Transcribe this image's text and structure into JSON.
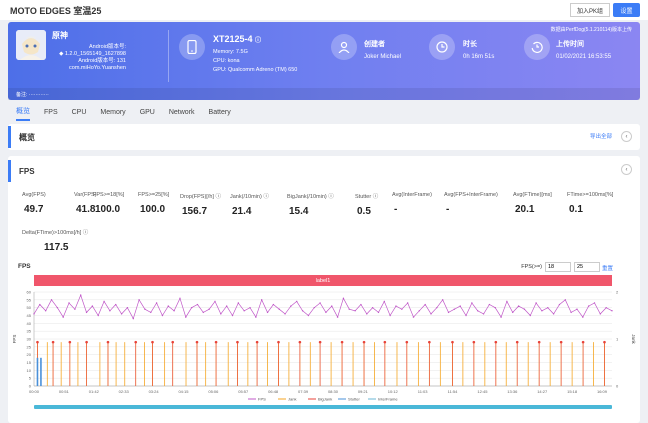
{
  "header": {
    "title": "MOTO EDGES 室温25",
    "join_label": "加入PK组",
    "settings_label": "设置"
  },
  "app": {
    "name": "原神",
    "android_ver_label": "Android版本号:",
    "version": "◆ 1.2.0_1565149_1627898",
    "android_ver_label2": "Android版本号: 131",
    "package": "com.miHoYo.Yuanshen"
  },
  "device": {
    "name": "XT2125-4",
    "memory": "Memory: 7.5G",
    "cpu": "CPU: kona",
    "gpu": "GPU: Qualcomm Adreno (TM) 650"
  },
  "creator": {
    "label": "创建者",
    "value": "Joker Michael"
  },
  "duration": {
    "label": "时长",
    "value": "0h 16m 51s"
  },
  "upload": {
    "label": "上传时间",
    "value": "01/02/2021 16:53:55",
    "perfdog": "数据由PerfDog(5.1.210114)版本上传"
  },
  "banner_foot": "备注: ············",
  "tabs": [
    "概览",
    "FPS",
    "CPU",
    "Memory",
    "GPU",
    "Network",
    "Battery"
  ],
  "overview": {
    "title": "概览",
    "export": "导出全部"
  },
  "fps_card": {
    "title": "FPS",
    "stats": [
      {
        "label": "Avg(FPS)",
        "value": "49.7"
      },
      {
        "label": "Var(FPS)",
        "value": "41.8"
      },
      {
        "label": "FPS>=18[%]",
        "value": "100.0"
      },
      {
        "label": "FPS>=25[%]",
        "value": "100.0"
      },
      {
        "label": "Drop(FPS)[/h] ⓘ",
        "value": "156.7"
      },
      {
        "label": "Jank(/10min) ⓘ",
        "value": "21.4"
      },
      {
        "label": "BigJank(/10min) ⓘ",
        "value": "15.4"
      },
      {
        "label": "Stutter ⓘ",
        "value": "0.5"
      },
      {
        "label": "Avg(InterFrame)",
        "value": "-"
      },
      {
        "label": "Avg(FPS+InterFrame)",
        "value": "-"
      },
      {
        "label": "Avg(FTime)[ms]",
        "value": "20.1"
      },
      {
        "label": "FTime>=100ms[%]",
        "value": "0.1"
      },
      {
        "label": "Delta(FTime)>100ms[/h] ⓘ",
        "value": "117.5"
      }
    ],
    "chart_label": "FPS",
    "fps_filter_label": "FPS(>=)",
    "fps_filter_1": "18",
    "fps_filter_2": "25",
    "reset": "重置",
    "label_bar": "label1"
  },
  "colors": {
    "accent": "#3b7cf6",
    "fps_line": "#c058c8",
    "jank": "#f5a623",
    "bigjank": "#e8433a",
    "stutter": "#4a90d9",
    "label_bar": "#f0566b"
  },
  "chart_data": {
    "type": "line",
    "title": "FPS",
    "ylabel": "FPS",
    "y2label": "Jank",
    "ylim": [
      0,
      60
    ],
    "y2lim": [
      0,
      2
    ],
    "yticks": [
      0,
      5,
      10,
      15,
      20,
      25,
      30,
      35,
      40,
      45,
      50,
      55,
      60
    ],
    "y2ticks": [
      0,
      1,
      2
    ],
    "x_ticks": [
      "00:00",
      "00:51",
      "01:42",
      "02:33",
      "03:24",
      "04:15",
      "05:06",
      "05:57",
      "06:48",
      "07:39",
      "08:30",
      "09:21",
      "10:12",
      "11:03",
      "11:54",
      "12:45",
      "13:36",
      "14:27",
      "15:18",
      "16:09"
    ],
    "legend": [
      "FPS",
      "Jank",
      "BigJank",
      "Stutter",
      "InterFrame"
    ],
    "legend_position": "bottom",
    "fps_series": [
      46,
      52,
      48,
      55,
      50,
      44,
      53,
      49,
      58,
      47,
      51,
      45,
      54,
      48,
      52,
      46,
      50,
      43,
      55,
      49,
      47,
      53,
      45,
      51,
      48,
      56,
      44,
      50,
      52,
      47,
      49,
      54,
      46,
      51,
      45,
      53,
      48,
      50,
      44,
      55,
      47,
      52,
      49,
      46,
      51,
      54,
      48,
      45,
      50,
      53,
      47,
      51,
      44,
      56,
      49,
      48,
      52,
      46,
      50,
      47,
      54,
      45,
      51,
      49,
      53,
      44,
      48,
      52,
      46,
      50,
      55,
      47,
      49,
      51,
      45,
      53,
      48,
      46,
      52,
      50,
      44,
      54,
      47,
      51,
      49,
      45,
      53,
      48,
      50,
      46,
      52,
      55,
      47,
      49,
      44,
      51,
      53,
      46,
      50,
      48
    ],
    "jank_events": [
      0.6,
      2.3,
      3.3,
      4.7,
      6.2,
      7.6,
      9.1,
      11.4,
      12.8,
      14.2,
      15.7,
      17.6,
      19.1,
      20.5,
      22.6,
      24.0,
      26.3,
      28.2,
      29.7,
      31.5,
      33.6,
      35.2,
      37.0,
      38.6,
      40.4,
      42.3,
      44.1,
      46.0,
      47.8,
      49.5,
      51.4,
      53.3,
      55.2,
      57.1,
      58.9,
      60.7,
      62.8,
      64.5,
      66.5,
      68.4,
      70.3,
      72.4,
      74.2,
      76.1,
      78.0,
      79.9,
      81.7,
      83.6,
      85.5,
      87.4,
      89.3,
      91.2,
      93.1,
      95.0,
      96.8,
      98.7
    ],
    "bigjank_events": [
      0.6,
      3.3,
      6.2,
      9.1,
      12.8,
      17.6,
      20.5,
      24.0,
      28.2,
      31.5,
      35.2,
      38.6,
      42.3,
      46.0,
      49.5,
      53.3,
      57.1,
      60.7,
      64.5,
      68.4,
      72.4,
      76.1,
      79.9,
      83.6,
      87.4,
      91.2,
      95.0,
      98.7
    ],
    "stutter_events": [
      0.6,
      1.2
    ]
  }
}
